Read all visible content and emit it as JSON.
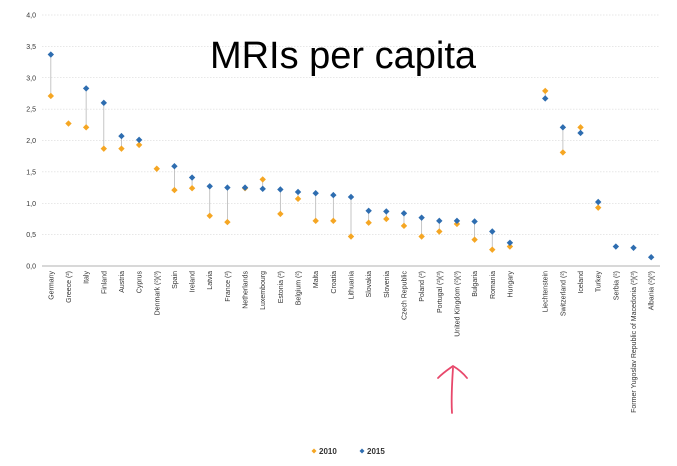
{
  "chart_data": {
    "type": "scatter",
    "title": "MRIs  per capita",
    "xlabel": "",
    "ylabel": "",
    "ylim": [
      0,
      4
    ],
    "yticks": [
      "0,0",
      "0,5",
      "1,0",
      "1,5",
      "2,0",
      "2,5",
      "3,0",
      "3,5",
      "4,0"
    ],
    "grid": true,
    "legend_position": "bottom",
    "categories": [
      "Germany",
      "Greece (²)",
      "Italy",
      "Finland",
      "Austria",
      "Cyprus",
      "Denmark (²)(³)",
      "Spain",
      "Ireland",
      "Latvia",
      "France (²)",
      "Netherlands",
      "Luxembourg",
      "Estonia (²)",
      "Belgium (²)",
      "Malta",
      "Croatia",
      "Lithuania",
      "Slovakia",
      "Slovenia",
      "Czech Republic",
      "Poland (²)",
      "Portugal (²)(³)",
      "United Kingdom (²)(³)",
      "Bulgaria",
      "Romania",
      "Hungary",
      "",
      "Liechtenstein",
      "Switzerland (²)",
      "Iceland",
      "Turkey",
      "Serbia (²)",
      "Former Yugoslav Republic of Macedonia (²)(³)",
      "Albania (²)(³)"
    ],
    "series": [
      {
        "name": "2010",
        "color": "#f5a623",
        "values": [
          2.71,
          2.27,
          2.21,
          1.87,
          1.87,
          1.93,
          1.55,
          1.21,
          1.24,
          0.8,
          0.7,
          1.24,
          1.38,
          0.83,
          1.07,
          0.72,
          0.72,
          0.47,
          0.69,
          0.75,
          0.64,
          0.47,
          0.55,
          0.67,
          0.42,
          0.26,
          0.31,
          null,
          2.79,
          1.81,
          2.21,
          0.93,
          null,
          null,
          null
        ]
      },
      {
        "name": "2015",
        "color": "#2e6db0",
        "values": [
          3.37,
          null,
          2.83,
          2.6,
          2.07,
          2.01,
          null,
          1.59,
          1.41,
          1.27,
          1.25,
          1.25,
          1.23,
          1.22,
          1.18,
          1.16,
          1.13,
          1.1,
          0.88,
          0.87,
          0.84,
          0.77,
          0.72,
          0.72,
          0.71,
          0.55,
          0.37,
          null,
          2.67,
          2.21,
          2.12,
          1.02,
          0.31,
          0.29,
          0.14
        ]
      }
    ]
  },
  "annotation": {
    "arrow_color": "#e8486b"
  }
}
